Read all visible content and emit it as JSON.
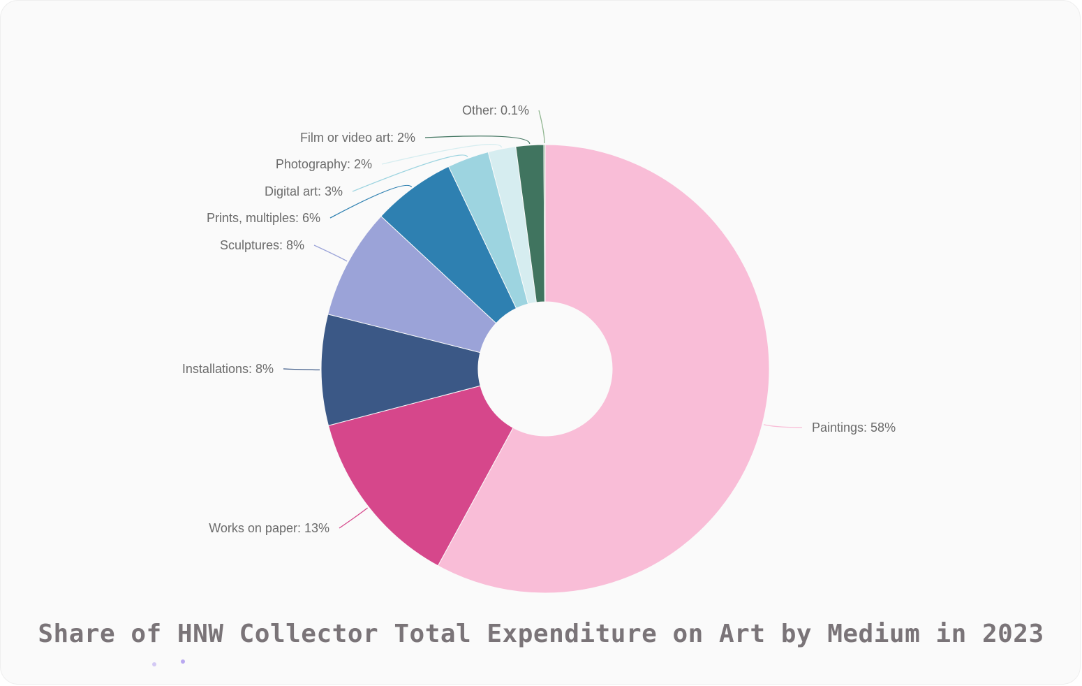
{
  "chart_data": {
    "type": "pie",
    "variant": "donut",
    "title": "Share of HNW Collector Total Expenditure on Art by Medium in 2023",
    "categories": [
      "Paintings",
      "Works on paper",
      "Installations",
      "Sculptures",
      "Prints, multiples",
      "Digital art",
      "Photography",
      "Film or video art",
      "Other"
    ],
    "values": [
      58,
      13,
      8,
      8,
      6,
      3,
      2,
      2,
      0.1
    ],
    "labels": [
      "Paintings: 58%",
      "Works on paper: 13%",
      "Installations: 8%",
      "Sculptures: 8%",
      "Prints, multiples: 6%",
      "Digital art: 3%",
      "Photography: 2%",
      "Film or video art: 2%",
      "Other: 0.1%"
    ],
    "colors": [
      "#f9bdd7",
      "#d6478b",
      "#3b5886",
      "#9ba3d8",
      "#2e80b1",
      "#9dd4e0",
      "#d6edf0",
      "#40745f",
      "#8fb58f"
    ],
    "legend": "none"
  }
}
